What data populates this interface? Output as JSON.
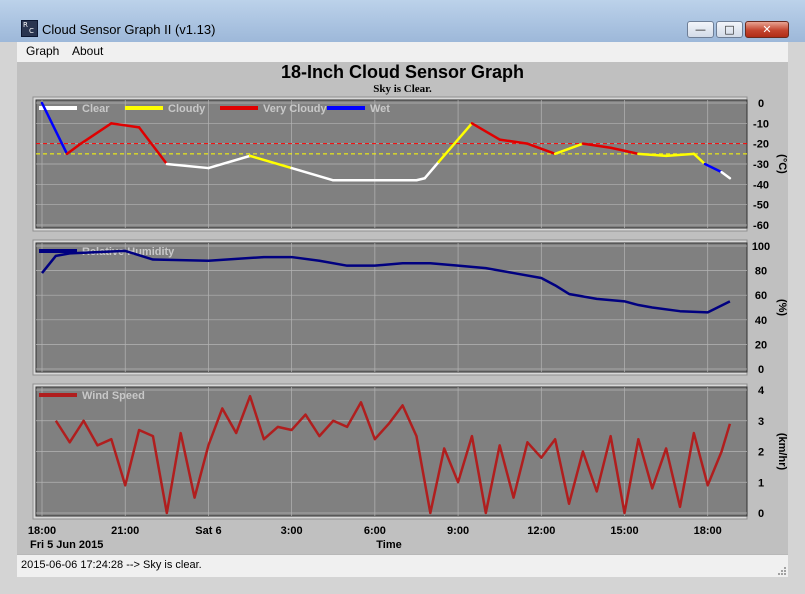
{
  "window": {
    "title": "Cloud Sensor Graph II (v1.13)",
    "icon": "app-icon",
    "buttons": {
      "minimize": "minimize-icon",
      "maximize": "maximize-icon",
      "close": "close-icon"
    }
  },
  "menu": {
    "items": [
      "Graph",
      "About"
    ]
  },
  "header": {
    "title": "18-Inch Cloud Sensor Graph",
    "subtitle": "Sky is Clear."
  },
  "status": {
    "text": "2015-06-06 17:24:28 --> Sky is clear."
  },
  "colors": {
    "plot_bg": "#808080",
    "grid": "#b4b4b4",
    "clear": "#ffffff",
    "cloudy": "#ffff00",
    "very_cloudy": "#e00000",
    "wet": "#0000ff",
    "humidity": "#000080",
    "wind": "#b01e1e",
    "threshold_cloudy": "#ffff00",
    "threshold_very_cloudy": "#ff0000"
  },
  "x_axis": {
    "label": "Time",
    "ticks": [
      "18:00",
      "21:00",
      "Sat 6",
      "3:00",
      "6:00",
      "9:00",
      "12:00",
      "15:00",
      "18:00"
    ],
    "start_label": "Fri 5 Jun 2015"
  },
  "chart_data": [
    {
      "type": "line",
      "name": "sky-temperature",
      "legend": [
        "Clear",
        "Cloudy",
        "Very Cloudy",
        "Wet"
      ],
      "ylabel": "(°C)",
      "ylim": [
        -60,
        0
      ],
      "yticks": [
        "0",
        "-10",
        "-20",
        "-30",
        "-40",
        "-50",
        "-60"
      ],
      "thresholds": {
        "very_cloudy": -20,
        "cloudy": -25
      },
      "x_hours": [
        0,
        0.9,
        1.4,
        2.5,
        3.5,
        4.5,
        6,
        7.5,
        9,
        10.5,
        12,
        13.5,
        13.8,
        14.3,
        15.5,
        16.5,
        17.5,
        18.5,
        19.5,
        20.5,
        21.5,
        22.5,
        23.5,
        23.9,
        24.5,
        24.8
      ],
      "values": [
        0,
        -25,
        -20,
        -10,
        -12,
        -30,
        -32,
        -26,
        -32,
        -38,
        -38,
        -38,
        -37,
        -29,
        -10,
        -18,
        -20,
        -25,
        -20,
        -22,
        -25,
        -26,
        -25,
        -30,
        -34,
        -37
      ],
      "series_by_condition": [
        "wet",
        "very_cloudy",
        "very_cloudy",
        "very_cloudy",
        "very_cloudy",
        "clear",
        "clear",
        "cloudy",
        "clear",
        "clear",
        "clear",
        "clear",
        "clear",
        "cloudy",
        "very_cloudy",
        "very_cloudy",
        "very_cloudy",
        "cloudy",
        "very_cloudy",
        "very_cloudy",
        "cloudy",
        "cloudy",
        "cloudy",
        "wet",
        "clear",
        "clear"
      ]
    },
    {
      "type": "line",
      "name": "relative-humidity",
      "legend": [
        "Relative Humidity"
      ],
      "ylabel": "(%)",
      "ylim": [
        0,
        100
      ],
      "yticks": [
        "100",
        "80",
        "60",
        "40",
        "20",
        "0"
      ],
      "x_hours": [
        0,
        0.5,
        1,
        2,
        3,
        4,
        6,
        8,
        9,
        10,
        11,
        12,
        13,
        14,
        15,
        16,
        17,
        18,
        18.5,
        19,
        20,
        21,
        21.5,
        22,
        23,
        24,
        24.8
      ],
      "values": [
        78,
        92,
        94,
        95,
        96,
        89,
        88,
        91,
        91,
        88,
        84,
        84,
        86,
        86,
        84,
        82,
        78,
        74,
        68,
        61,
        57,
        55,
        52,
        50,
        47,
        46,
        55
      ]
    },
    {
      "type": "line",
      "name": "wind-speed",
      "legend": [
        "Wind Speed"
      ],
      "ylabel": "(km/hr)",
      "ylim": [
        0,
        4
      ],
      "yticks": [
        "4",
        "3",
        "2",
        "1",
        "0"
      ],
      "x_hours": [
        0.5,
        1,
        1.5,
        2,
        2.5,
        3,
        3.5,
        4,
        4.5,
        5,
        5.5,
        6,
        6.5,
        7,
        7.5,
        8,
        8.5,
        9,
        9.5,
        10,
        10.5,
        11,
        11.5,
        12,
        12.5,
        13,
        13.5,
        14,
        14.5,
        15,
        15.5,
        16,
        16.5,
        17,
        17.5,
        18,
        18.5,
        19,
        19.5,
        20,
        20.5,
        21,
        21.5,
        22,
        22.5,
        23,
        23.5,
        24,
        24.5,
        24.8
      ],
      "values": [
        3.0,
        2.3,
        3.0,
        2.2,
        2.4,
        0.9,
        2.7,
        2.5,
        0,
        2.6,
        0.5,
        2.2,
        3.4,
        2.6,
        3.8,
        2.4,
        2.8,
        2.7,
        3.2,
        2.5,
        3.0,
        2.8,
        3.6,
        2.4,
        2.9,
        3.5,
        2.5,
        0,
        2.1,
        1.0,
        2.5,
        0,
        2.2,
        0.5,
        2.3,
        1.8,
        2.4,
        0.3,
        2.0,
        0.7,
        2.5,
        0,
        2.4,
        0.8,
        2.1,
        0.2,
        2.6,
        0.9,
        2.0,
        2.9
      ]
    }
  ]
}
